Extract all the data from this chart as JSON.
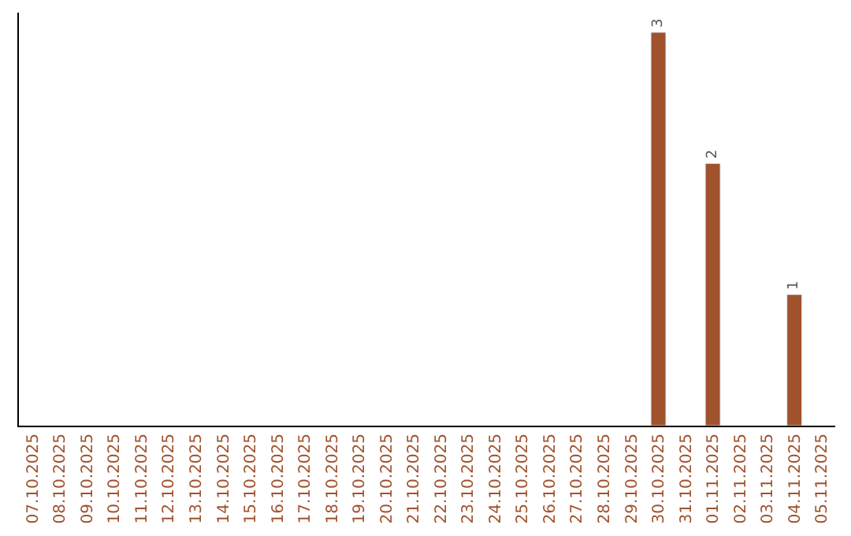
{
  "chart_data": {
    "type": "bar",
    "categories": [
      "07.10.2025",
      "08.10.2025",
      "09.10.2025",
      "10.10.2025",
      "11.10.2025",
      "12.10.2025",
      "13.10.2025",
      "14.10.2025",
      "15.10.2025",
      "16.10.2025",
      "17.10.2025",
      "18.10.2025",
      "19.10.2025",
      "20.10.2025",
      "21.10.2025",
      "22.10.2025",
      "23.10.2025",
      "24.10.2025",
      "25.10.2025",
      "26.10.2025",
      "27.10.2025",
      "28.10.2025",
      "29.10.2025",
      "30.10.2025",
      "31.10.2025",
      "01.11.2025",
      "02.11.2025",
      "03.11.2025",
      "04.11.2025",
      "05.11.2025"
    ],
    "values": [
      null,
      null,
      null,
      null,
      null,
      null,
      null,
      null,
      null,
      null,
      null,
      null,
      null,
      null,
      null,
      null,
      null,
      null,
      null,
      null,
      null,
      null,
      null,
      3,
      null,
      2,
      null,
      null,
      1,
      null
    ],
    "data_labels": true,
    "color": "#a0522d",
    "ylim": [
      0,
      3.15
    ],
    "tick_labels": "x",
    "legend": false
  }
}
